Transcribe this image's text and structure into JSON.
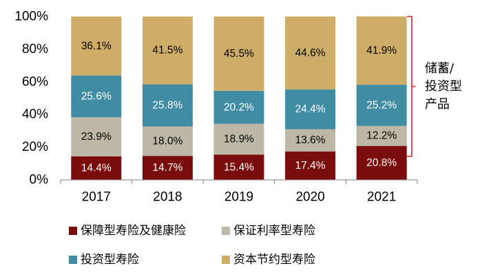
{
  "chart_data": {
    "type": "bar",
    "stacked": true,
    "categories": [
      "2017",
      "2018",
      "2019",
      "2020",
      "2021"
    ],
    "series": [
      {
        "name": "保障型寿险及健康险",
        "color": "#7B0C0C",
        "label_color": "#FFFFFF",
        "values": [
          14.4,
          14.7,
          15.4,
          17.4,
          20.8
        ],
        "labels": [
          "14.4%",
          "14.7%",
          "15.4%",
          "17.4%",
          "20.8%"
        ]
      },
      {
        "name": "保证利率型寿险",
        "color": "#BDB8A6",
        "label_color": "#000000",
        "values": [
          23.9,
          18.0,
          18.9,
          13.6,
          12.2
        ],
        "labels": [
          "23.9%",
          "18.0%",
          "18.9%",
          "13.6%",
          "12.2%"
        ]
      },
      {
        "name": "投资型寿险",
        "color": "#3F8CA3",
        "label_color": "#FFFFFF",
        "values": [
          25.6,
          25.8,
          20.2,
          24.4,
          25.2
        ],
        "labels": [
          "25.6%",
          "25.8%",
          "20.2%",
          "24.4%",
          "25.2%"
        ]
      },
      {
        "name": "资本节约型寿险",
        "color": "#CDAD68",
        "label_color": "#000000",
        "values": [
          36.1,
          41.5,
          45.5,
          44.6,
          41.9
        ],
        "labels": [
          "36.1%",
          "41.5%",
          "45.5%",
          "44.6%",
          "41.9%"
        ]
      }
    ],
    "y_ticks": [
      0,
      20,
      40,
      60,
      80,
      100
    ],
    "y_tick_labels": [
      "0%",
      "20%",
      "40%",
      "60%",
      "80%",
      "100%"
    ],
    "ylim": [
      0,
      100
    ],
    "grid": false,
    "legend_position": "bottom",
    "annotation": {
      "text_lines": [
        "储蓄/",
        "投资型",
        "产品"
      ],
      "bracket_color": "#E31E24",
      "spans_series": [
        "保证利率型寿险",
        "投资型寿险",
        "资本节约型寿险"
      ]
    }
  }
}
